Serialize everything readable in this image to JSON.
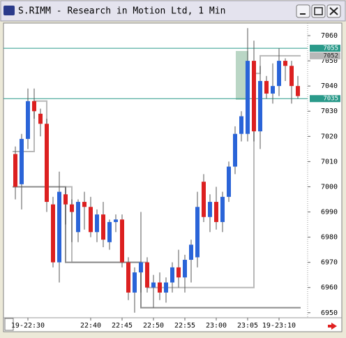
{
  "window_title": "S.RIMM - Research in Motion Ltd, 1 Min",
  "chart_data": {
    "type": "candlestick",
    "categories": [
      null,
      null,
      "19-22:30",
      null,
      null,
      null,
      null,
      null,
      null,
      null,
      null,
      null,
      "22:40",
      null,
      null,
      null,
      null,
      "22:45",
      null,
      null,
      null,
      null,
      "22:50",
      null,
      null,
      null,
      null,
      "22:55",
      null,
      null,
      null,
      null,
      "23:00",
      null,
      null,
      null,
      null,
      "23:05",
      null,
      null,
      null,
      null,
      "19-23:10",
      null,
      null,
      null
    ],
    "open": [
      7013,
      7001,
      7019,
      7034,
      7029,
      7025,
      6993,
      6970,
      6997,
      6993,
      6982,
      6994,
      6992,
      6982,
      6989,
      6978,
      6986,
      6987,
      6970,
      6958,
      6966,
      6970,
      6960,
      6962,
      6958,
      6962,
      6968,
      6964,
      6971,
      6972,
      7002,
      6988,
      6994,
      6986,
      6996,
      7008,
      7021,
      7021,
      7050,
      7022,
      7042,
      7037,
      7040,
      7050,
      7048,
      7040
    ],
    "high": [
      7016,
      7021,
      7039,
      7039,
      7031,
      7027,
      6996,
      7006,
      7000,
      6995,
      6995,
      6998,
      6996,
      6991,
      6994,
      6987,
      6989,
      6989,
      6972,
      6968,
      6990,
      6972,
      6965,
      6966,
      6964,
      6970,
      6975,
      6973,
      6979,
      6998,
      7005,
      6997,
      7000,
      6998,
      7010,
      7024,
      7030,
      7063,
      7058,
      7048,
      7044,
      7049,
      7055,
      7051,
      7050,
      7044
    ],
    "low": [
      6995,
      6991,
      7015,
      7027,
      7020,
      6990,
      6968,
      6962,
      6985,
      6978,
      6978,
      6983,
      6980,
      6978,
      6976,
      6975,
      6982,
      6968,
      6955,
      6950,
      6958,
      6958,
      6952,
      6955,
      6954,
      6958,
      6960,
      6958,
      6962,
      6968,
      6986,
      6982,
      6983,
      6982,
      6994,
      7005,
      7018,
      7018,
      7018,
      7015,
      7035,
      7033,
      7036,
      7042,
      7033,
      7035
    ],
    "close": [
      7000,
      7019,
      7034,
      7030,
      7025,
      6994,
      6970,
      6998,
      6993,
      6990,
      6994,
      6992,
      6982,
      6989,
      6979,
      6986,
      6987,
      6970,
      6958,
      6966,
      6970,
      6960,
      6962,
      6958,
      6962,
      6968,
      6964,
      6971,
      6977,
      6992,
      6988,
      6994,
      6986,
      6996,
      7008,
      7021,
      7028,
      7050,
      7022,
      7042,
      7037,
      7040,
      7050,
      7048,
      7040,
      7036
    ],
    "up_color": "#2a64d8",
    "down_color": "#dc2020",
    "overlays": [
      {
        "color": "#b8b8b8",
        "values": [
          7014,
          7014,
          7014,
          7034,
          7034,
          7000,
          7000,
          7000,
          7000,
          6970,
          6970,
          6970,
          6970,
          6970,
          6970,
          6970,
          6970,
          6970,
          6970,
          6970,
          6970,
          6960,
          6960,
          6960,
          6960,
          6960,
          6960,
          6960,
          6960,
          6960,
          6960,
          6960,
          6960,
          6960,
          6960,
          6960,
          6960,
          6960,
          7045,
          7052,
          7052,
          7052,
          7052,
          7052,
          7052,
          7052
        ],
        "marker": 7052
      },
      {
        "color": "#8c8c8c",
        "values": [
          7000,
          7000,
          7000,
          7000,
          7000,
          7000,
          7000,
          7000,
          6970,
          6970,
          6970,
          6970,
          6970,
          6970,
          6970,
          6970,
          6970,
          6970,
          6970,
          6970,
          6952,
          6952,
          6952,
          6952,
          6952,
          6952,
          6952,
          6952,
          6952,
          6952,
          6952,
          6952,
          6952,
          6952,
          6952,
          6952,
          6952,
          6952,
          6952,
          6952,
          6952,
          6952,
          6952,
          6952,
          6952,
          6952
        ]
      }
    ],
    "levels": [
      7055,
      7035
    ],
    "level_color": "#2a9a8a",
    "ylim": [
      6948,
      7065
    ],
    "yticks": [
      6950,
      6960,
      6970,
      6980,
      6990,
      7000,
      7010,
      7020,
      7030,
      7040,
      7050,
      7060
    ]
  }
}
